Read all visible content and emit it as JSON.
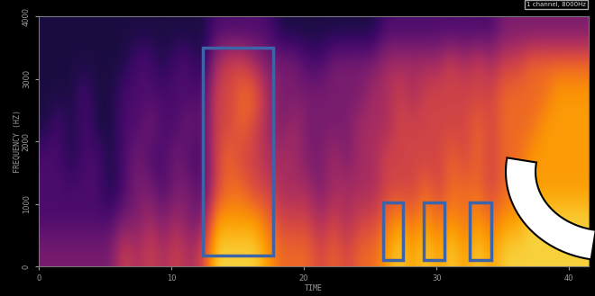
{
  "chart_data": {
    "type": "heatmap",
    "annotation": "1 channel, 8000Hz",
    "x_label": "TIME",
    "y_label": "FREQUENCY (HZ)",
    "xlim": [
      0,
      41.5
    ],
    "ylim": [
      0,
      4000
    ],
    "xticks": [
      0,
      10,
      20,
      30,
      40
    ],
    "yticks": [
      0,
      1000,
      2000,
      3000,
      4000
    ],
    "color_range": [
      0,
      9
    ],
    "cells": [
      [
        3,
        3,
        3,
        3,
        3,
        3,
        5,
        4,
        5,
        4,
        5,
        4,
        5,
        8,
        8,
        8,
        8,
        7,
        6,
        6,
        6,
        5,
        6,
        5,
        6,
        6,
        7,
        8,
        7,
        8,
        7,
        8,
        7,
        8,
        7,
        8,
        8,
        8,
        8,
        8,
        8,
        8
      ],
      [
        2,
        2,
        2,
        2,
        2,
        2,
        3,
        3,
        4,
        3,
        4,
        3,
        3,
        7,
        7,
        7,
        7,
        6,
        5,
        5,
        5,
        4,
        5,
        4,
        5,
        5,
        6,
        7,
        6,
        7,
        6,
        7,
        6,
        7,
        6,
        7,
        7,
        8,
        8,
        8,
        8,
        8
      ],
      [
        2,
        2,
        2,
        2,
        2,
        1,
        2,
        3,
        3,
        2,
        3,
        3,
        2,
        5,
        6,
        6,
        5,
        5,
        4,
        4,
        4,
        3,
        4,
        4,
        4,
        4,
        5,
        5,
        5,
        6,
        5,
        6,
        6,
        6,
        5,
        6,
        6,
        7,
        7,
        7,
        7,
        7
      ],
      [
        2,
        2,
        1,
        2,
        2,
        1,
        2,
        3,
        2,
        2,
        3,
        2,
        2,
        5,
        6,
        5,
        5,
        4,
        4,
        4,
        3,
        3,
        4,
        3,
        4,
        4,
        5,
        5,
        5,
        5,
        5,
        6,
        5,
        6,
        5,
        6,
        6,
        7,
        7,
        7,
        7,
        7
      ],
      [
        1,
        2,
        1,
        2,
        1,
        1,
        2,
        2,
        3,
        2,
        2,
        3,
        2,
        5,
        5,
        6,
        5,
        4,
        3,
        4,
        3,
        3,
        3,
        3,
        4,
        4,
        4,
        5,
        5,
        5,
        5,
        5,
        5,
        6,
        5,
        6,
        6,
        6,
        7,
        7,
        7,
        7
      ],
      [
        1,
        1,
        1,
        2,
        1,
        1,
        2,
        2,
        2,
        2,
        2,
        2,
        2,
        5,
        5,
        6,
        6,
        4,
        3,
        3,
        3,
        3,
        3,
        3,
        3,
        4,
        4,
        5,
        4,
        5,
        5,
        5,
        5,
        5,
        5,
        6,
        6,
        6,
        6,
        7,
        7,
        7
      ],
      [
        1,
        1,
        1,
        1,
        1,
        1,
        1,
        2,
        2,
        1,
        2,
        2,
        1,
        4,
        5,
        5,
        4,
        3,
        3,
        3,
        2,
        2,
        3,
        3,
        3,
        3,
        4,
        4,
        4,
        4,
        4,
        5,
        4,
        5,
        4,
        5,
        5,
        6,
        6,
        6,
        6,
        6
      ],
      [
        1,
        1,
        1,
        1,
        1,
        1,
        1,
        1,
        1,
        1,
        1,
        1,
        1,
        2,
        2,
        2,
        2,
        2,
        1,
        1,
        1,
        1,
        1,
        1,
        1,
        1,
        2,
        2,
        2,
        2,
        2,
        2,
        2,
        2,
        2,
        3,
        3,
        3,
        3,
        3,
        3,
        3
      ]
    ],
    "highlights": [
      {
        "x": [
          12.4,
          17.65
        ],
        "y": [
          170,
          3500
        ]
      },
      {
        "x": [
          26.0,
          27.5
        ],
        "y": [
          100,
          1020
        ]
      },
      {
        "x": [
          29.0,
          30.6
        ],
        "y": [
          100,
          1020
        ]
      },
      {
        "x": [
          32.5,
          34.1
        ],
        "y": [
          100,
          1020
        ]
      }
    ]
  }
}
